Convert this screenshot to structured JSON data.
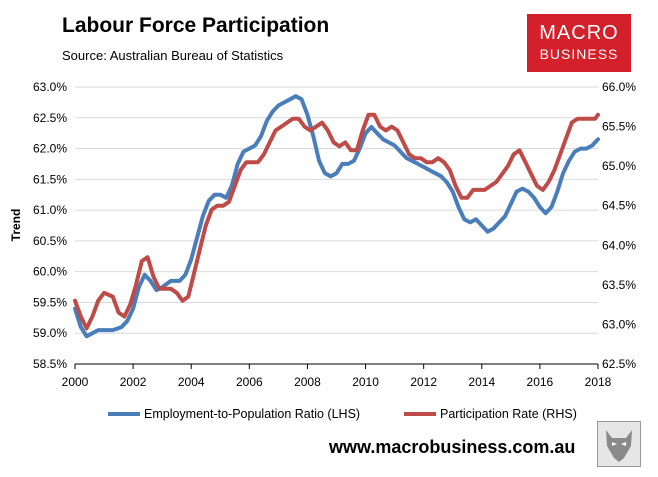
{
  "header": {
    "title": "Labour Force Participation",
    "subtitle": "Source: Australian Bureau of Statistics"
  },
  "logo": {
    "line1": "MACRO",
    "line2": "BUSINESS"
  },
  "footer": {
    "website": "www.macrobusiness.com.au"
  },
  "colors": {
    "series_lhs": "#4a7ebb",
    "series_rhs": "#be4b48",
    "plot_bg": "#ffffff",
    "grid": "#d9d9d9",
    "brand": "#d4202a"
  },
  "chart_data": {
    "type": "line",
    "title": "Labour Force Participation",
    "ylabel": "Trend",
    "xlim": [
      2000,
      2018
    ],
    "ylim": [
      58.5,
      63.0
    ],
    "y2lim": [
      62.5,
      66.0
    ],
    "x_ticks": [
      "2000",
      "2002",
      "2004",
      "2006",
      "2008",
      "2010",
      "2012",
      "2014",
      "2016",
      "2018"
    ],
    "y_ticks": [
      "58.5%",
      "59.0%",
      "59.5%",
      "60.0%",
      "60.5%",
      "61.0%",
      "61.5%",
      "62.0%",
      "62.5%",
      "63.0%"
    ],
    "y2_ticks": [
      "62.5%",
      "63.0%",
      "63.5%",
      "64.0%",
      "64.5%",
      "65.0%",
      "65.5%",
      "66.0%"
    ],
    "grid": "horizontal",
    "legend_position": "bottom",
    "series": [
      {
        "name": "Employment-to-Population Ratio (LHS)",
        "axis": "left",
        "points": [
          [
            2000.0,
            59.4
          ],
          [
            2000.2,
            59.1
          ],
          [
            2000.4,
            58.95
          ],
          [
            2000.6,
            59.0
          ],
          [
            2000.8,
            59.05
          ],
          [
            2001.0,
            59.05
          ],
          [
            2001.3,
            59.05
          ],
          [
            2001.6,
            59.1
          ],
          [
            2001.8,
            59.2
          ],
          [
            2002.0,
            59.4
          ],
          [
            2002.2,
            59.75
          ],
          [
            2002.4,
            59.95
          ],
          [
            2002.6,
            59.85
          ],
          [
            2002.8,
            59.7
          ],
          [
            2003.0,
            59.75
          ],
          [
            2003.3,
            59.85
          ],
          [
            2003.6,
            59.85
          ],
          [
            2003.8,
            59.95
          ],
          [
            2004.0,
            60.2
          ],
          [
            2004.2,
            60.55
          ],
          [
            2004.4,
            60.9
          ],
          [
            2004.6,
            61.15
          ],
          [
            2004.8,
            61.25
          ],
          [
            2005.0,
            61.25
          ],
          [
            2005.2,
            61.2
          ],
          [
            2005.4,
            61.4
          ],
          [
            2005.6,
            61.75
          ],
          [
            2005.8,
            61.95
          ],
          [
            2006.0,
            62.0
          ],
          [
            2006.2,
            62.05
          ],
          [
            2006.4,
            62.2
          ],
          [
            2006.6,
            62.45
          ],
          [
            2006.8,
            62.6
          ],
          [
            2007.0,
            62.7
          ],
          [
            2007.2,
            62.75
          ],
          [
            2007.4,
            62.8
          ],
          [
            2007.6,
            62.85
          ],
          [
            2007.8,
            62.8
          ],
          [
            2008.0,
            62.55
          ],
          [
            2008.2,
            62.2
          ],
          [
            2008.4,
            61.8
          ],
          [
            2008.6,
            61.6
          ],
          [
            2008.8,
            61.55
          ],
          [
            2009.0,
            61.6
          ],
          [
            2009.2,
            61.75
          ],
          [
            2009.4,
            61.75
          ],
          [
            2009.6,
            61.8
          ],
          [
            2009.8,
            62.0
          ],
          [
            2010.0,
            62.25
          ],
          [
            2010.2,
            62.35
          ],
          [
            2010.4,
            62.25
          ],
          [
            2010.6,
            62.15
          ],
          [
            2010.8,
            62.1
          ],
          [
            2011.0,
            62.05
          ],
          [
            2011.2,
            61.95
          ],
          [
            2011.4,
            61.85
          ],
          [
            2011.6,
            61.8
          ],
          [
            2011.8,
            61.75
          ],
          [
            2012.0,
            61.7
          ],
          [
            2012.2,
            61.65
          ],
          [
            2012.4,
            61.6
          ],
          [
            2012.6,
            61.55
          ],
          [
            2012.8,
            61.45
          ],
          [
            2013.0,
            61.3
          ],
          [
            2013.2,
            61.05
          ],
          [
            2013.4,
            60.85
          ],
          [
            2013.6,
            60.8
          ],
          [
            2013.8,
            60.85
          ],
          [
            2014.0,
            60.75
          ],
          [
            2014.2,
            60.65
          ],
          [
            2014.4,
            60.7
          ],
          [
            2014.6,
            60.8
          ],
          [
            2014.8,
            60.9
          ],
          [
            2015.0,
            61.1
          ],
          [
            2015.2,
            61.3
          ],
          [
            2015.4,
            61.35
          ],
          [
            2015.6,
            61.3
          ],
          [
            2015.8,
            61.2
          ],
          [
            2016.0,
            61.05
          ],
          [
            2016.2,
            60.95
          ],
          [
            2016.4,
            61.05
          ],
          [
            2016.6,
            61.3
          ],
          [
            2016.8,
            61.6
          ],
          [
            2017.0,
            61.8
          ],
          [
            2017.2,
            61.95
          ],
          [
            2017.4,
            62.0
          ],
          [
            2017.6,
            62.0
          ],
          [
            2017.8,
            62.05
          ],
          [
            2018.0,
            62.15
          ]
        ]
      },
      {
        "name": "Participation Rate (RHS)",
        "axis": "right",
        "points": [
          [
            2000.0,
            63.3
          ],
          [
            2000.2,
            63.1
          ],
          [
            2000.4,
            62.95
          ],
          [
            2000.6,
            63.1
          ],
          [
            2000.8,
            63.3
          ],
          [
            2001.0,
            63.4
          ],
          [
            2001.3,
            63.35
          ],
          [
            2001.5,
            63.15
          ],
          [
            2001.7,
            63.1
          ],
          [
            2001.9,
            63.25
          ],
          [
            2002.1,
            63.5
          ],
          [
            2002.3,
            63.8
          ],
          [
            2002.5,
            63.85
          ],
          [
            2002.7,
            63.6
          ],
          [
            2002.9,
            63.45
          ],
          [
            2003.1,
            63.45
          ],
          [
            2003.3,
            63.45
          ],
          [
            2003.5,
            63.4
          ],
          [
            2003.7,
            63.3
          ],
          [
            2003.9,
            63.35
          ],
          [
            2004.1,
            63.65
          ],
          [
            2004.3,
            63.95
          ],
          [
            2004.5,
            64.25
          ],
          [
            2004.7,
            64.45
          ],
          [
            2004.9,
            64.5
          ],
          [
            2005.1,
            64.5
          ],
          [
            2005.3,
            64.55
          ],
          [
            2005.5,
            64.75
          ],
          [
            2005.7,
            64.95
          ],
          [
            2005.9,
            65.05
          ],
          [
            2006.1,
            65.05
          ],
          [
            2006.3,
            65.05
          ],
          [
            2006.5,
            65.15
          ],
          [
            2006.7,
            65.3
          ],
          [
            2006.9,
            65.45
          ],
          [
            2007.1,
            65.5
          ],
          [
            2007.3,
            65.55
          ],
          [
            2007.5,
            65.6
          ],
          [
            2007.7,
            65.6
          ],
          [
            2007.9,
            65.5
          ],
          [
            2008.1,
            65.45
          ],
          [
            2008.3,
            65.5
          ],
          [
            2008.5,
            65.55
          ],
          [
            2008.7,
            65.45
          ],
          [
            2008.9,
            65.3
          ],
          [
            2009.1,
            65.25
          ],
          [
            2009.3,
            65.3
          ],
          [
            2009.5,
            65.2
          ],
          [
            2009.7,
            65.2
          ],
          [
            2009.9,
            65.45
          ],
          [
            2010.1,
            65.65
          ],
          [
            2010.3,
            65.65
          ],
          [
            2010.5,
            65.5
          ],
          [
            2010.7,
            65.45
          ],
          [
            2010.9,
            65.5
          ],
          [
            2011.1,
            65.45
          ],
          [
            2011.3,
            65.3
          ],
          [
            2011.5,
            65.15
          ],
          [
            2011.7,
            65.1
          ],
          [
            2011.9,
            65.1
          ],
          [
            2012.1,
            65.05
          ],
          [
            2012.3,
            65.05
          ],
          [
            2012.5,
            65.1
          ],
          [
            2012.7,
            65.05
          ],
          [
            2012.9,
            64.95
          ],
          [
            2013.1,
            64.75
          ],
          [
            2013.3,
            64.6
          ],
          [
            2013.5,
            64.6
          ],
          [
            2013.7,
            64.7
          ],
          [
            2013.9,
            64.7
          ],
          [
            2014.1,
            64.7
          ],
          [
            2014.3,
            64.75
          ],
          [
            2014.5,
            64.8
          ],
          [
            2014.7,
            64.9
          ],
          [
            2014.9,
            65.0
          ],
          [
            2015.1,
            65.15
          ],
          [
            2015.3,
            65.2
          ],
          [
            2015.5,
            65.05
          ],
          [
            2015.7,
            64.9
          ],
          [
            2015.9,
            64.75
          ],
          [
            2016.1,
            64.7
          ],
          [
            2016.3,
            64.8
          ],
          [
            2016.5,
            64.95
          ],
          [
            2016.7,
            65.15
          ],
          [
            2016.9,
            65.35
          ],
          [
            2017.1,
            65.55
          ],
          [
            2017.3,
            65.6
          ],
          [
            2017.5,
            65.6
          ],
          [
            2017.7,
            65.6
          ],
          [
            2017.9,
            65.6
          ],
          [
            2018.0,
            65.65
          ]
        ]
      }
    ]
  }
}
